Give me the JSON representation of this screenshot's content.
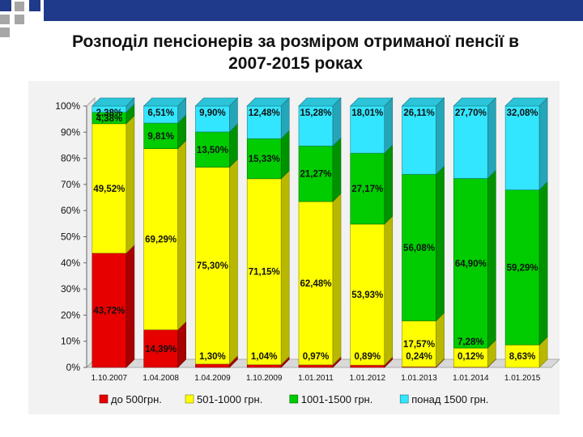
{
  "title": "Розподіл пенсіонерів за розміром отриманої пенсії в\n2007-2015 роках",
  "colors": {
    "deco_blue": "#1f3a8a",
    "deco_gray": "#a6a6a6"
  },
  "chart_data": {
    "type": "bar",
    "stacked": true,
    "normalized_percent": true,
    "categories": [
      "1.10.2007",
      "1.04.2008",
      "1.04.2009",
      "1.10.2009",
      "1.01.2011",
      "1.01.2012",
      "1.01.2013",
      "1.01.2014",
      "1.01.2015"
    ],
    "series": [
      {
        "name": "до 500грн.",
        "color": "#e60000",
        "values": [
          43.72,
          14.39,
          1.3,
          1.04,
          0.97,
          0.89,
          0.24,
          0.12,
          0
        ],
        "labels": [
          "43,72%",
          "14,39%",
          "1,30%",
          "1,04%",
          "0,97%",
          "0,89%",
          "0,24%",
          "0,12%",
          ""
        ]
      },
      {
        "name": "501-1000 грн.",
        "color": "#ffff00",
        "values": [
          49.52,
          69.29,
          75.3,
          71.15,
          62.48,
          53.93,
          17.57,
          7.28,
          8.63
        ],
        "labels": [
          "49,52%",
          "69,29%",
          "75,30%",
          "71,15%",
          "62,48%",
          "53,93%",
          "17,57%",
          "7,28%",
          "8,63%"
        ]
      },
      {
        "name": "1001-1500 грн.",
        "color": "#00cc00",
        "values": [
          4.38,
          9.81,
          13.5,
          15.33,
          21.27,
          27.17,
          56.08,
          64.9,
          59.29
        ],
        "labels": [
          "4,38%",
          "9,81%",
          "13,50%",
          "15,33%",
          "21,27%",
          "27,17%",
          "56,08%",
          "64,90%",
          "59,29%"
        ]
      },
      {
        "name": "понад 1500 грн.",
        "color": "#33e6ff",
        "values": [
          2.38,
          6.51,
          9.9,
          12.48,
          15.28,
          18.01,
          26.11,
          27.7,
          32.08
        ],
        "labels": [
          "2,38%",
          "6,51%",
          "9,90%",
          "12,48%",
          "15,28%",
          "18,01%",
          "26,11%",
          "27,70%",
          "32,08%"
        ]
      }
    ],
    "ylim": [
      0,
      100
    ],
    "y_ticks": [
      "0%",
      "10%",
      "20%",
      "30%",
      "40%",
      "50%",
      "60%",
      "70%",
      "80%",
      "90%",
      "100%"
    ],
    "xlabel": "",
    "ylabel": "",
    "legend_position": "bottom",
    "grid": false
  }
}
